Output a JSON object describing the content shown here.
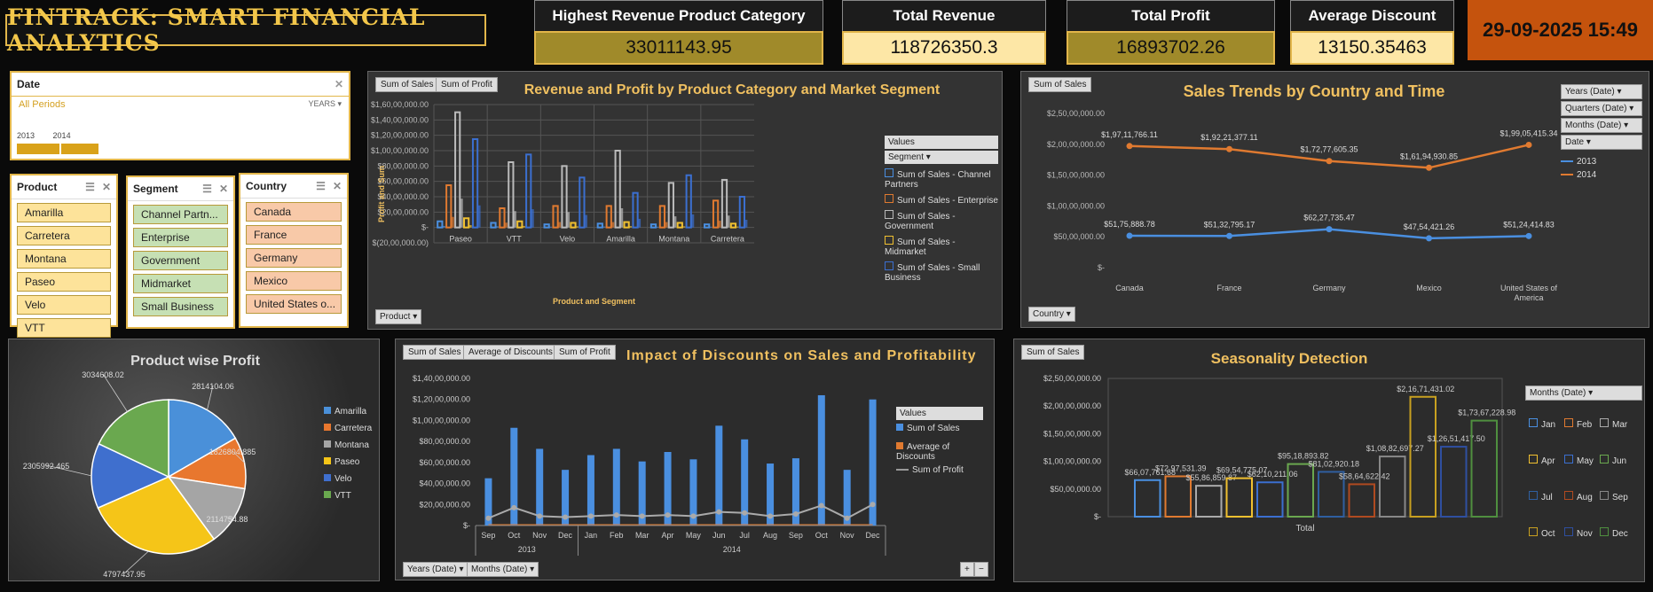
{
  "title": "FINTRACK: SMART FINANCIAL ANALYTICS",
  "kpis": [
    {
      "label": "Highest Revenue Product Category",
      "value": "33011143.95",
      "color": "#a08a2a"
    },
    {
      "label": "Total Revenue",
      "value": "118726350.3",
      "color": "#fde7a6"
    },
    {
      "label": "Total Profit",
      "value": "16893702.26",
      "color": "#a08a2a"
    },
    {
      "label": "Average Discount",
      "value": "13150.35463",
      "color": "#fde7a6"
    }
  ],
  "datetime": "29-09-2025 15:49",
  "date_slicer": {
    "title": "Date",
    "period": "All Periods",
    "unit": "YEARS",
    "years": [
      "2013",
      "2014"
    ]
  },
  "product_slicer": {
    "title": "Product",
    "items": [
      "Amarilla",
      "Carretera",
      "Montana",
      "Paseo",
      "Velo",
      "VTT"
    ]
  },
  "segment_slicer": {
    "title": "Segment",
    "items": [
      "Channel Partn...",
      "Enterprise",
      "Government",
      "Midmarket",
      "Small Business"
    ]
  },
  "country_slicer": {
    "title": "Country",
    "items": [
      "Canada",
      "France",
      "Germany",
      "Mexico",
      "United States o..."
    ]
  },
  "chart1": {
    "tags": [
      "Sum of Sales",
      "Sum of Profit"
    ],
    "title": "Revenue and Profit by Product Category and Market Segment",
    "ylabel": "Profit and Sum",
    "xlabel": "Product and Segment",
    "filter_button": "Product",
    "legend_title": "Values",
    "legend_dropdown": "Segment",
    "legend": [
      {
        "name": "Sum of Sales - Channel Partners",
        "color": "#4a8fe0"
      },
      {
        "name": "Sum of Sales - Enterprise",
        "color": "#e07a30"
      },
      {
        "name": "Sum of Sales - Government",
        "color": "#bbbbbb"
      },
      {
        "name": "Sum of Sales - Midmarket",
        "color": "#f0c030"
      },
      {
        "name": "Sum of Sales - Small Business",
        "color": "#3b6fd0"
      }
    ],
    "y_ticks": [
      "$1,60,00,000.00",
      "$1,40,00,000.00",
      "$1,20,00,000.00",
      "$1,00,00,000.00",
      "$80,00,000.00",
      "$60,00,000.00",
      "$40,00,000.00",
      "$20,00,000.00",
      "$-",
      "$(20,00,000.00)"
    ]
  },
  "chart2": {
    "tag": "Sum of Sales",
    "title": "Sales Trends by Country and Time",
    "filter_button": "Country",
    "dropdowns": [
      "Years (Date)",
      "Quarters (Date)",
      "Months (Date)",
      "Date"
    ],
    "y_ticks": [
      "$2,50,00,000.00",
      "$2,00,00,000.00",
      "$1,50,00,000.00",
      "$1,00,00,000.00",
      "$50,00,000.00",
      "$-"
    ],
    "point_labels_2014": [
      "$1,97,11,766.11",
      "$1,92,21,377.11",
      "$1,72,77,605.35",
      "$1,61,94,930.85",
      "$1,99,05,415.34"
    ],
    "point_labels_2013": [
      "$51,75,888.78",
      "$51,32,795.17",
      "$62,27,735.47",
      "$47,54,421.26",
      "$51,24,414.83"
    ]
  },
  "chart3": {
    "title": "Product wise Profit",
    "labels": [
      "2814104.06",
      "1826804.885",
      "2114754.88",
      "4797437.95",
      "2305992.465",
      "3034608.02"
    ]
  },
  "chart4": {
    "tags": [
      "Sum of Sales",
      "Average of Discounts",
      "Sum of Profit"
    ],
    "title": "Impact of Discounts on Sales and Profitability",
    "legend_title": "Values",
    "legend": [
      "Sum of Sales",
      "Average of Discounts",
      "Sum of Profit"
    ],
    "y_ticks": [
      "$1,40,00,000.00",
      "$1,20,00,000.00",
      "$1,00,00,000.00",
      "$80,00,000.00",
      "$60,00,000.00",
      "$40,00,000.00",
      "$20,00,000.00",
      "$-"
    ],
    "year_labels": [
      "2013",
      "2014"
    ],
    "buttons": [
      "Years (Date)",
      "Months (Date)"
    ],
    "zoom": [
      "+",
      "−"
    ]
  },
  "chart5": {
    "tag": "Sum of Sales",
    "title": "Seasonality Detection",
    "dropdown": "Months (Date)",
    "xlabel": "Total",
    "y_ticks": [
      "$2,50,00,000.00",
      "$2,00,00,000.00",
      "$1,50,00,000.00",
      "$1,00,00,000.00",
      "$50,00,000.00",
      "$-"
    ],
    "bar_labels": [
      "$66,07,761.68",
      "$72,97,531.39",
      "$55,86,859.87",
      "$69,54,775.07",
      "$62,10,211.06",
      "$95,18,893.82",
      "$81,02,920.18",
      "$58,64,622.42",
      "$1,08,82,697.27",
      "$2,16,71,431.02",
      "$1,26,51,417.50",
      "$1,73,67,228.98"
    ]
  },
  "chart_data": [
    {
      "type": "bar",
      "title": "Revenue and Profit by Product Category and Market Segment",
      "xlabel": "Product and Segment",
      "ylabel": "Profit and Sum",
      "ylim": [
        -2000000,
        16000000
      ],
      "categories": [
        "Paseo",
        "VTT",
        "Velo",
        "Amarilla",
        "Montana",
        "Carretera"
      ],
      "series": [
        {
          "name": "Sum of Sales - Channel Partners",
          "values": [
            800000,
            600000,
            400000,
            500000,
            400000,
            400000
          ]
        },
        {
          "name": "Sum of Sales - Enterprise",
          "values": [
            5500000,
            2500000,
            2800000,
            2800000,
            2800000,
            3500000
          ]
        },
        {
          "name": "Sum of Sales - Government",
          "values": [
            15000000,
            8500000,
            8000000,
            10000000,
            5800000,
            6200000
          ]
        },
        {
          "name": "Sum of Sales - Midmarket",
          "values": [
            1200000,
            800000,
            600000,
            700000,
            600000,
            500000
          ]
        },
        {
          "name": "Sum of Sales - Small Business",
          "values": [
            11500000,
            9500000,
            6500000,
            4500000,
            6800000,
            4000000
          ]
        }
      ]
    },
    {
      "type": "line",
      "title": "Sales Trends by Country and Time",
      "categories": [
        "Canada",
        "France",
        "Germany",
        "Mexico",
        "United States of America"
      ],
      "ylim": [
        0,
        25000000
      ],
      "series": [
        {
          "name": "2013",
          "color": "#4a8fe0",
          "values": [
            5175888.78,
            5132795.17,
            6227735.47,
            4754421.26,
            5124414.83
          ]
        },
        {
          "name": "2014",
          "color": "#e07a30",
          "values": [
            19711766.11,
            19221377.11,
            17277605.35,
            16194930.85,
            19905415.34
          ]
        }
      ]
    },
    {
      "type": "pie",
      "title": "Product wise Profit",
      "categories": [
        "Amarilla",
        "Carretera",
        "Montana",
        "Paseo",
        "Velo",
        "VTT"
      ],
      "values": [
        2814104.06,
        1826804.885,
        2114754.88,
        4797437.95,
        2305992.465,
        3034608.02
      ],
      "colors": [
        "#4a90d9",
        "#e8772e",
        "#a5a5a5",
        "#f5c518",
        "#3f6fce",
        "#6aa84f"
      ]
    },
    {
      "type": "bar",
      "title": "Impact of Discounts on Sales and Profitability",
      "categories": [
        "Sep",
        "Oct",
        "Nov",
        "Dec",
        "Jan",
        "Feb",
        "Mar",
        "Apr",
        "May",
        "Jun",
        "Jul",
        "Aug",
        "Sep",
        "Oct",
        "Nov",
        "Dec"
      ],
      "ylim": [
        0,
        14000000
      ],
      "series": [
        {
          "name": "Sum of Sales",
          "values": [
            4500000,
            9300000,
            7300000,
            5300000,
            6700000,
            7300000,
            6100000,
            7000000,
            6300000,
            9500000,
            8200000,
            5900000,
            6400000,
            12400000,
            5300000,
            12000000
          ]
        },
        {
          "name": "Average of Discounts",
          "values": [
            800,
            1200,
            900,
            800,
            900,
            1000,
            800,
            900,
            900,
            1200,
            1000,
            800,
            900,
            1500,
            700,
            1500
          ]
        },
        {
          "name": "Sum of Profit",
          "values": [
            700000,
            1700000,
            900000,
            800000,
            900000,
            1000000,
            900000,
            1000000,
            900000,
            1300000,
            1200000,
            900000,
            1100000,
            1900000,
            700000,
            2000000
          ]
        }
      ]
    },
    {
      "type": "bar",
      "title": "Seasonality Detection",
      "xlabel": "Total",
      "ylim": [
        0,
        25000000
      ],
      "categories": [
        "Jan",
        "Feb",
        "Mar",
        "Apr",
        "May",
        "Jun",
        "Jul",
        "Aug",
        "Sep",
        "Oct",
        "Nov",
        "Dec"
      ],
      "values": [
        6607761.68,
        7297531.39,
        5586859.87,
        6954775.07,
        6210211.06,
        9518893.82,
        8102920.18,
        5864622.42,
        10882697.27,
        21671431.02,
        12651417.5,
        17367228.98
      ],
      "colors": [
        "#4a8fe0",
        "#e07a30",
        "#aaaaaa",
        "#f0c030",
        "#3b6fd0",
        "#6aa84f",
        "#2f5fa0",
        "#b04a20",
        "#888888",
        "#c8a020",
        "#2f4fa0",
        "#4f8f3f"
      ]
    }
  ]
}
